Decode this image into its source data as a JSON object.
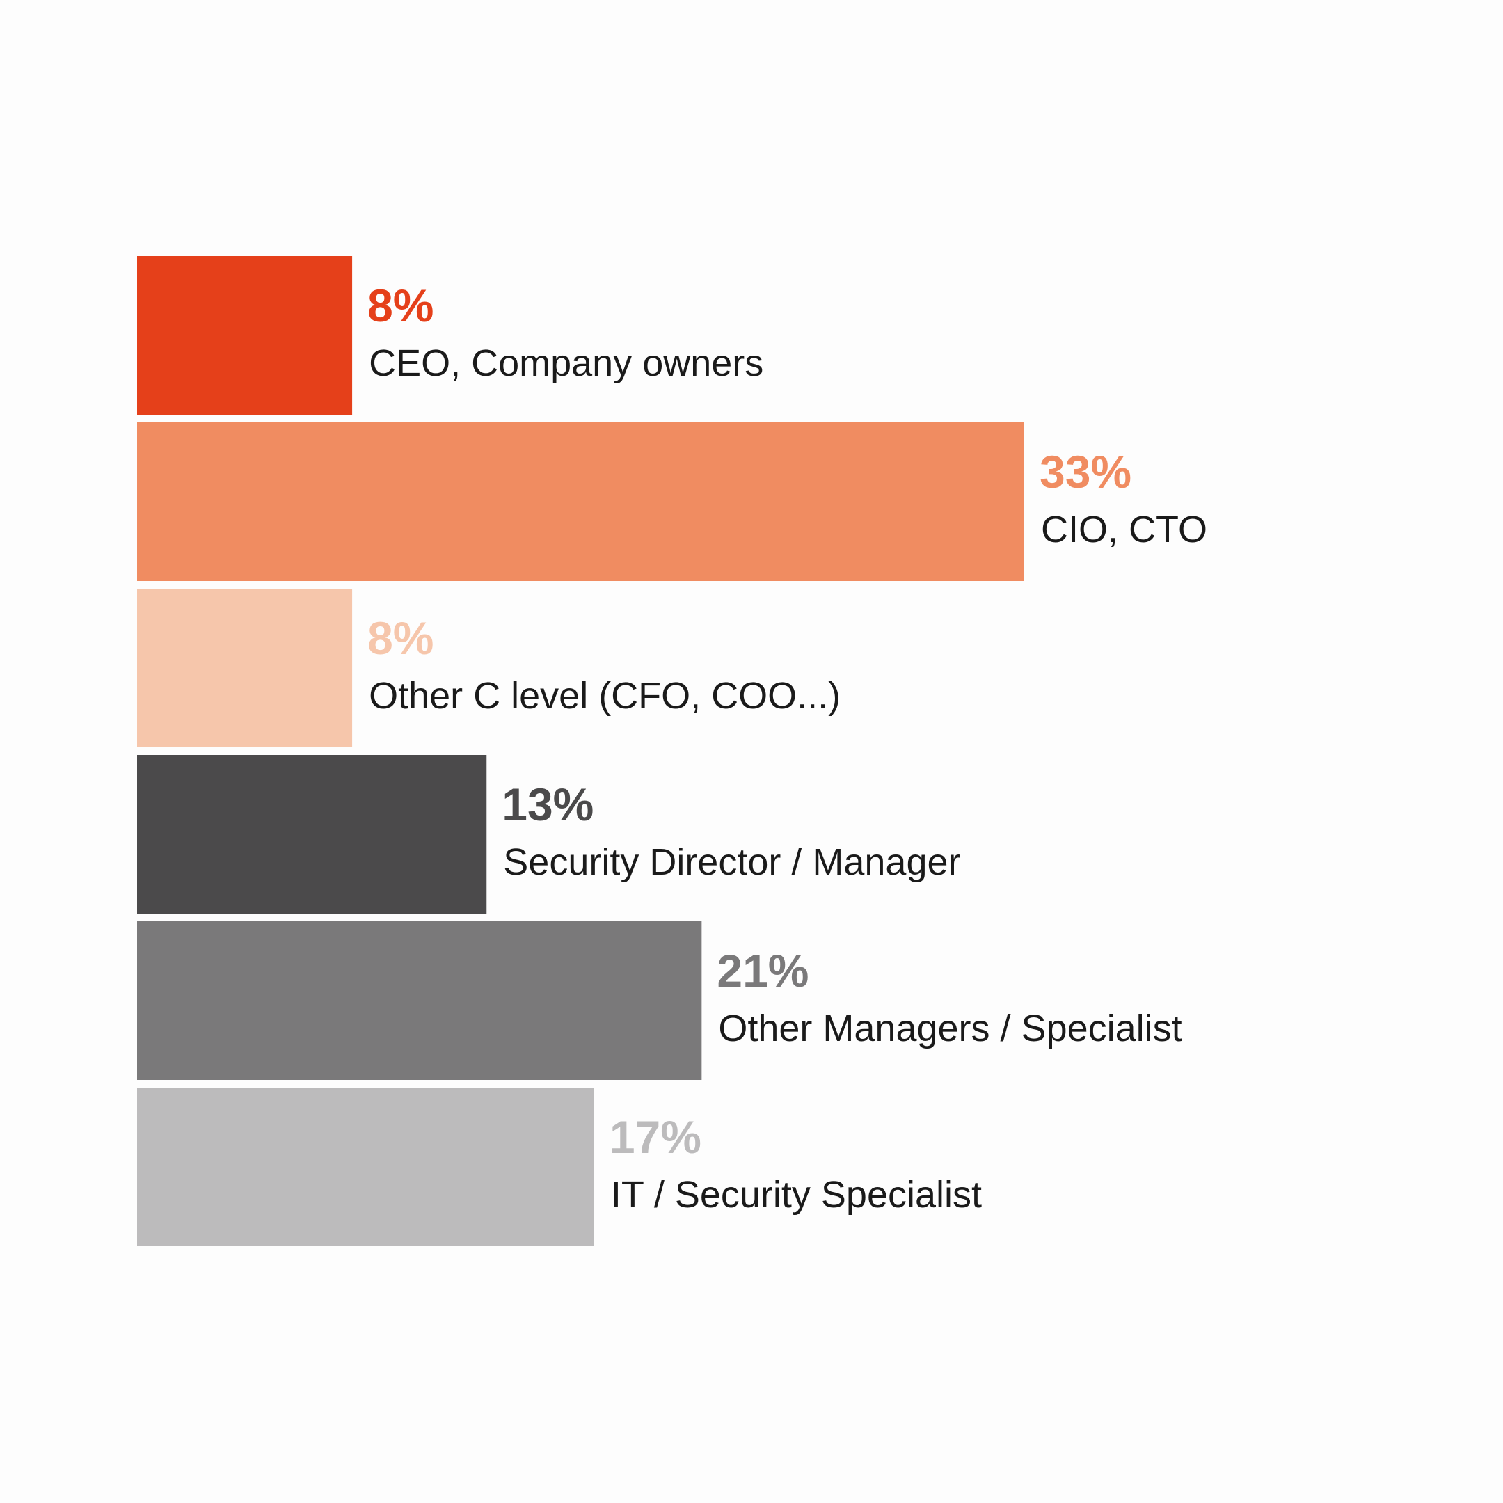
{
  "chart_data": {
    "type": "bar",
    "orientation": "horizontal",
    "categories": [
      "CEO, Company owners",
      "CIO, CTO",
      "Other C level (CFO, COO...)",
      "Security Director / Manager",
      "Other Managers / Specialist",
      "IT / Security Specialist"
    ],
    "values": [
      8,
      33,
      8,
      13,
      21,
      17
    ],
    "value_labels": [
      "8%",
      "33%",
      "8%",
      "13%",
      "21%",
      "17%"
    ],
    "colors": [
      "#e5401a",
      "#f08c61",
      "#f6c6ab",
      "#4b4a4b",
      "#7a797a",
      "#bcbbbc"
    ],
    "xlim": [
      0,
      33
    ],
    "axes_visible": false,
    "grid": false,
    "legend": "none",
    "labels_position": "right-of-bar"
  }
}
